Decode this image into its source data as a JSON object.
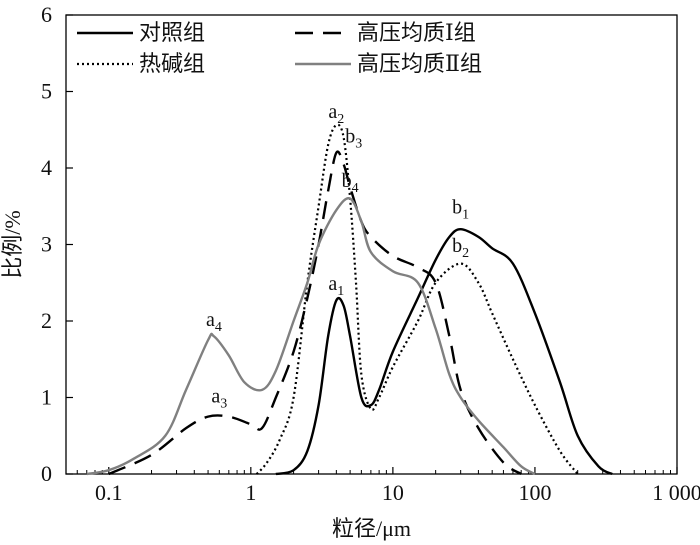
{
  "chart_data": {
    "type": "line",
    "xlabel": "粒径/μm",
    "ylabel": "比例/%",
    "xscale": "log",
    "xlim": [
      0.05,
      1000
    ],
    "ylim": [
      0,
      6
    ],
    "x_ticks": [
      {
        "value": 0.1,
        "label": "0.1"
      },
      {
        "value": 1,
        "label": "1"
      },
      {
        "value": 10,
        "label": "10"
      },
      {
        "value": 100,
        "label": "100"
      },
      {
        "value": 1000,
        "label": "1 000"
      }
    ],
    "y_ticks": [
      0,
      1,
      2,
      3,
      4,
      5,
      6
    ],
    "legend_position": "top",
    "series": [
      {
        "name": "对照组",
        "style": "solid",
        "color": "#000000",
        "points": [
          [
            1.5,
            0
          ],
          [
            2.0,
            0.05
          ],
          [
            2.5,
            0.3
          ],
          [
            3.0,
            0.9
          ],
          [
            3.5,
            1.8
          ],
          [
            4.0,
            2.27
          ],
          [
            4.5,
            2.2
          ],
          [
            5.0,
            1.8
          ],
          [
            6.0,
            1.0
          ],
          [
            7.0,
            0.9
          ],
          [
            8.0,
            1.1
          ],
          [
            10,
            1.6
          ],
          [
            15,
            2.3
          ],
          [
            20,
            2.8
          ],
          [
            25,
            3.1
          ],
          [
            30,
            3.2
          ],
          [
            40,
            3.1
          ],
          [
            50,
            2.95
          ],
          [
            70,
            2.75
          ],
          [
            100,
            2.1
          ],
          [
            150,
            1.2
          ],
          [
            200,
            0.5
          ],
          [
            280,
            0.1
          ],
          [
            350,
            0
          ]
        ]
      },
      {
        "name": "热碱组",
        "style": "dotted",
        "color": "#000000",
        "points": [
          [
            1.1,
            0
          ],
          [
            1.3,
            0.15
          ],
          [
            1.6,
            0.45
          ],
          [
            2.0,
            1.0
          ],
          [
            2.5,
            2.5
          ],
          [
            3.0,
            3.5
          ],
          [
            3.5,
            4.3
          ],
          [
            4.0,
            4.56
          ],
          [
            4.5,
            4.4
          ],
          [
            5.0,
            3.6
          ],
          [
            5.5,
            2.5
          ],
          [
            6.0,
            1.3
          ],
          [
            7.0,
            0.85
          ],
          [
            8.0,
            1.0
          ],
          [
            10,
            1.4
          ],
          [
            15,
            2.0
          ],
          [
            20,
            2.5
          ],
          [
            30,
            2.75
          ],
          [
            40,
            2.5
          ],
          [
            50,
            2.1
          ],
          [
            70,
            1.5
          ],
          [
            100,
            0.9
          ],
          [
            150,
            0.3
          ],
          [
            200,
            0
          ]
        ]
      },
      {
        "name": "高压均质Ⅰ组",
        "style": "dashed",
        "color": "#000000",
        "points": [
          [
            0.1,
            0
          ],
          [
            0.2,
            0.25
          ],
          [
            0.35,
            0.6
          ],
          [
            0.5,
            0.75
          ],
          [
            0.7,
            0.75
          ],
          [
            1.0,
            0.65
          ],
          [
            1.2,
            0.6
          ],
          [
            1.5,
            1.0
          ],
          [
            2.0,
            1.6
          ],
          [
            2.5,
            2.3
          ],
          [
            3.0,
            3.0
          ],
          [
            3.5,
            3.7
          ],
          [
            4.0,
            4.2
          ],
          [
            4.5,
            4.05
          ],
          [
            5.0,
            3.75
          ],
          [
            6.0,
            3.3
          ],
          [
            7.0,
            3.1
          ],
          [
            10,
            2.85
          ],
          [
            15,
            2.7
          ],
          [
            20,
            2.5
          ],
          [
            25,
            1.8
          ],
          [
            30,
            1.1
          ],
          [
            40,
            0.6
          ],
          [
            60,
            0.15
          ],
          [
            80,
            0
          ]
        ]
      },
      {
        "name": "高压均质Ⅱ组",
        "style": "solid",
        "color": "#808080",
        "points": [
          [
            0.07,
            0
          ],
          [
            0.1,
            0.05
          ],
          [
            0.15,
            0.2
          ],
          [
            0.25,
            0.5
          ],
          [
            0.35,
            1.1
          ],
          [
            0.5,
            1.75
          ],
          [
            0.55,
            1.8
          ],
          [
            0.7,
            1.55
          ],
          [
            0.9,
            1.2
          ],
          [
            1.2,
            1.1
          ],
          [
            1.5,
            1.35
          ],
          [
            2.0,
            2.0
          ],
          [
            2.5,
            2.5
          ],
          [
            3.0,
            3.0
          ],
          [
            4.0,
            3.45
          ],
          [
            5.0,
            3.6
          ],
          [
            6.0,
            3.3
          ],
          [
            7.0,
            2.9
          ],
          [
            10,
            2.65
          ],
          [
            15,
            2.5
          ],
          [
            20,
            1.9
          ],
          [
            25,
            1.3
          ],
          [
            30,
            1.0
          ],
          [
            40,
            0.7
          ],
          [
            60,
            0.35
          ],
          [
            80,
            0.1
          ],
          [
            100,
            0
          ]
        ]
      }
    ],
    "annotations": [
      {
        "base": "a",
        "sub": "1",
        "x": 4.0,
        "y": 2.35
      },
      {
        "base": "a",
        "sub": "2",
        "x": 4.0,
        "y": 4.6
      },
      {
        "base": "a",
        "sub": "3",
        "x": 0.6,
        "y": 0.88
      },
      {
        "base": "a",
        "sub": "4",
        "x": 0.55,
        "y": 1.88
      },
      {
        "base": "b",
        "sub": "1",
        "x": 30,
        "y": 3.35
      },
      {
        "base": "b",
        "sub": "2",
        "x": 30,
        "y": 2.85
      },
      {
        "base": "b",
        "sub": "3",
        "x": 5.3,
        "y": 4.28
      },
      {
        "base": "b",
        "sub": "4",
        "x": 5.0,
        "y": 3.7
      }
    ]
  }
}
